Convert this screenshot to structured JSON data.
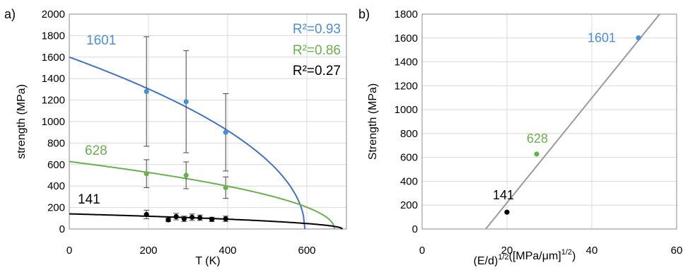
{
  "colors": {
    "blue": "#4a8fd4",
    "blue_curve": "#3f74c4",
    "green": "#6ab04c",
    "black": "#000000",
    "gray_line": "#9a9a9a",
    "error_bar": "#444444",
    "axis": "#888888"
  },
  "chart_data": [
    {
      "id": "a",
      "type": "scatter",
      "panel_label": "a)",
      "xlabel": "T (K)",
      "ylabel": "strength (MPa)",
      "xlim": [
        0,
        700
      ],
      "ylim": [
        0,
        2000
      ],
      "x_ticks": [
        0,
        200,
        400,
        600
      ],
      "y_ticks": [
        0,
        200,
        400,
        600,
        800,
        1000,
        1200,
        1400,
        1600,
        1800,
        2000
      ],
      "grid": true,
      "series": [
        {
          "label": "1601",
          "color": "#4a8fd4",
          "line_color": "#3f74c4",
          "r2_text": "R²=0.93",
          "points": [
            {
              "x": 195,
              "y": 1280,
              "err": 510
            },
            {
              "x": 295,
              "y": 1185,
              "err": 475
            },
            {
              "x": 395,
              "y": 900,
              "err": 360
            }
          ],
          "fit": {
            "s0": 1600,
            "t0": 595,
            "n": 0.5
          }
        },
        {
          "label": "628",
          "color": "#6ab04c",
          "line_color": "#6ab04c",
          "r2_text": "R²=0.86",
          "points": [
            {
              "x": 195,
              "y": 515,
              "err": 130
            },
            {
              "x": 295,
              "y": 500,
              "err": 125
            },
            {
              "x": 395,
              "y": 385,
              "err": 100
            }
          ],
          "fit": {
            "s0": 628,
            "t0": 670,
            "n": 0.5
          }
        },
        {
          "label": "141",
          "color": "#000000",
          "line_color": "#000000",
          "r2_text": "R²=0.27",
          "points": [
            {
              "x": 195,
              "y": 135,
              "err": 40
            },
            {
              "x": 250,
              "y": 85,
              "err": 15
            },
            {
              "x": 270,
              "y": 115,
              "err": 30
            },
            {
              "x": 290,
              "y": 95,
              "err": 25
            },
            {
              "x": 310,
              "y": 110,
              "err": 30
            },
            {
              "x": 330,
              "y": 105,
              "err": 25
            },
            {
              "x": 360,
              "y": 90,
              "err": 20
            },
            {
              "x": 395,
              "y": 95,
              "err": 25
            }
          ],
          "fit": {
            "s0": 141,
            "t0": 690,
            "n": 0.5
          }
        }
      ]
    },
    {
      "id": "b",
      "type": "scatter",
      "panel_label": "b)",
      "xlabel_main": "(E/d)",
      "xlabel_exp": "1/2",
      "xlabel_unit_main": "([MPa/μm]",
      "xlabel_unit_exp": "1/2",
      "xlabel_unit_close": ")",
      "ylabel": "Strength (MPa)",
      "xlim": [
        0,
        60
      ],
      "ylim": [
        0,
        1800
      ],
      "x_ticks": [
        0,
        20,
        40,
        60
      ],
      "y_ticks": [
        0,
        200,
        400,
        600,
        800,
        1000,
        1200,
        1400,
        1600,
        1800
      ],
      "grid": true,
      "points": [
        {
          "label": "1601",
          "x": 51,
          "y": 1601,
          "color": "#4a8fd4"
        },
        {
          "label": "628",
          "x": 27,
          "y": 628,
          "color": "#6ab04c"
        },
        {
          "label": "141",
          "x": 20,
          "y": 141,
          "color": "#000000"
        }
      ],
      "fit_line": {
        "x1": 15,
        "y1": 0,
        "x2": 56,
        "y2": 1800,
        "color": "#9a9a9a"
      }
    }
  ]
}
